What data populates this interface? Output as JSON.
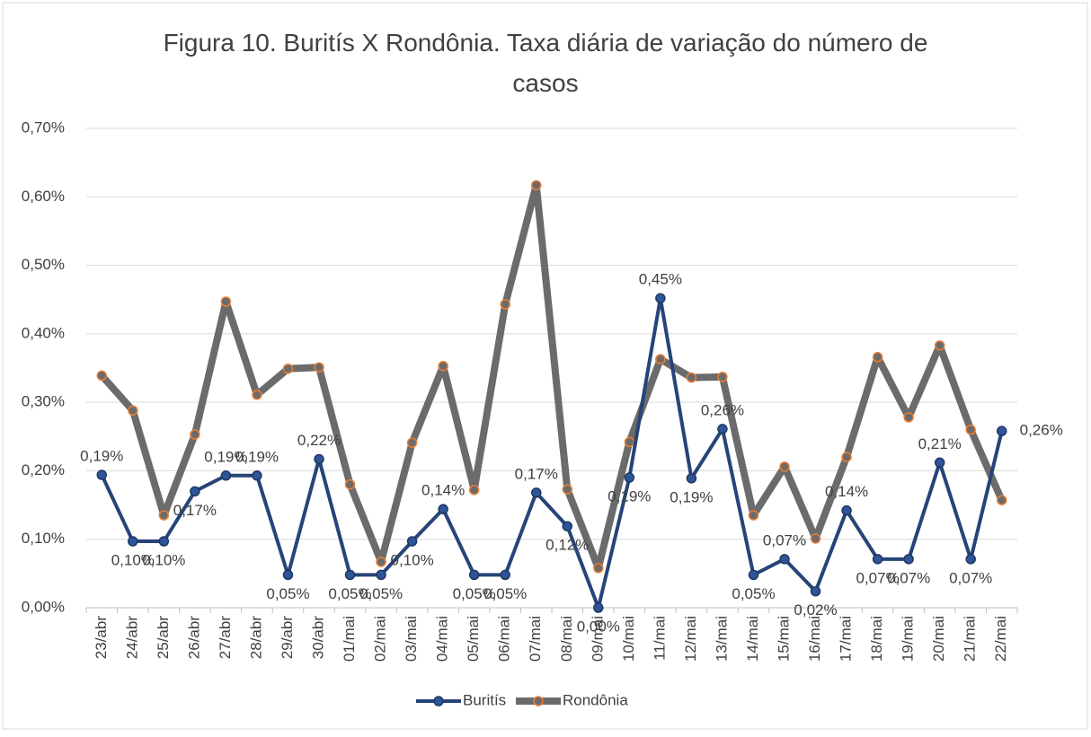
{
  "chart_data": {
    "type": "line",
    "title": "Figura 10. Buritís X Rondônia. Taxa diária de variação do número de casos",
    "categories": [
      "23/abr",
      "24/abr",
      "25/abr",
      "26/abr",
      "27/abr",
      "28/abr",
      "29/abr",
      "30/abr",
      "01/mai",
      "02/mai",
      "03/mai",
      "04/mai",
      "05/mai",
      "06/mai",
      "07/mai",
      "08/mai",
      "09/mai",
      "10/mai",
      "11/mai",
      "12/mai",
      "13/mai",
      "14/mai",
      "15/mai",
      "16/mai",
      "17/mai",
      "18/mai",
      "19/mai",
      "20/mai",
      "21/mai",
      "22/mai"
    ],
    "series": [
      {
        "name": "Buritís",
        "color": "#264478",
        "marker_color": "#2e5597",
        "values": [
          0.194,
          0.097,
          0.097,
          0.17,
          0.193,
          0.193,
          0.048,
          0.217,
          0.048,
          0.048,
          0.097,
          0.144,
          0.048,
          0.048,
          0.168,
          0.119,
          0.0,
          0.19,
          0.452,
          0.189,
          0.261,
          0.048,
          0.071,
          0.024,
          0.142,
          0.071,
          0.071,
          0.212,
          0.071,
          0.258
        ],
        "value_labels": [
          "0,19%",
          "0,10%",
          "0,10%",
          "0,17%",
          "0,19%",
          "0,19%",
          "0,05%",
          "0,22%",
          "0,05%",
          "0,05%",
          "0,10%",
          "0,14%",
          "0,05%",
          "0,05%",
          "0,17%",
          "0,12%",
          "0,00%",
          "0,19%",
          "0,45%",
          "0,19%",
          "0,26%",
          "0,05%",
          "0,07%",
          "0,02%",
          "0,14%",
          "0,07%",
          "0,07%",
          "0,21%",
          "0,07%",
          "0,26%"
        ]
      },
      {
        "name": "Rondônia",
        "color": "#6b6b6b",
        "marker_color": "#ed7d31",
        "values": [
          0.339,
          0.288,
          0.135,
          0.253,
          0.447,
          0.311,
          0.349,
          0.351,
          0.18,
          0.067,
          0.241,
          0.353,
          0.172,
          0.443,
          0.617,
          0.173,
          0.058,
          0.242,
          0.363,
          0.336,
          0.337,
          0.135,
          0.206,
          0.101,
          0.22,
          0.366,
          0.278,
          0.383,
          0.26,
          0.157
        ]
      }
    ],
    "ylim": [
      0,
      0.7
    ],
    "yticks": [
      {
        "value": 0,
        "label": "0,00%"
      },
      {
        "value": 0.1,
        "label": "0,10%"
      },
      {
        "value": 0.2,
        "label": "0,20%"
      },
      {
        "value": 0.3,
        "label": "0,30%"
      },
      {
        "value": 0.4,
        "label": "0,40%"
      },
      {
        "value": 0.5,
        "label": "0,50%"
      },
      {
        "value": 0.6,
        "label": "0,60%"
      },
      {
        "value": 0.7,
        "label": "0,70%"
      }
    ],
    "grid": true,
    "legend": "bottom"
  }
}
